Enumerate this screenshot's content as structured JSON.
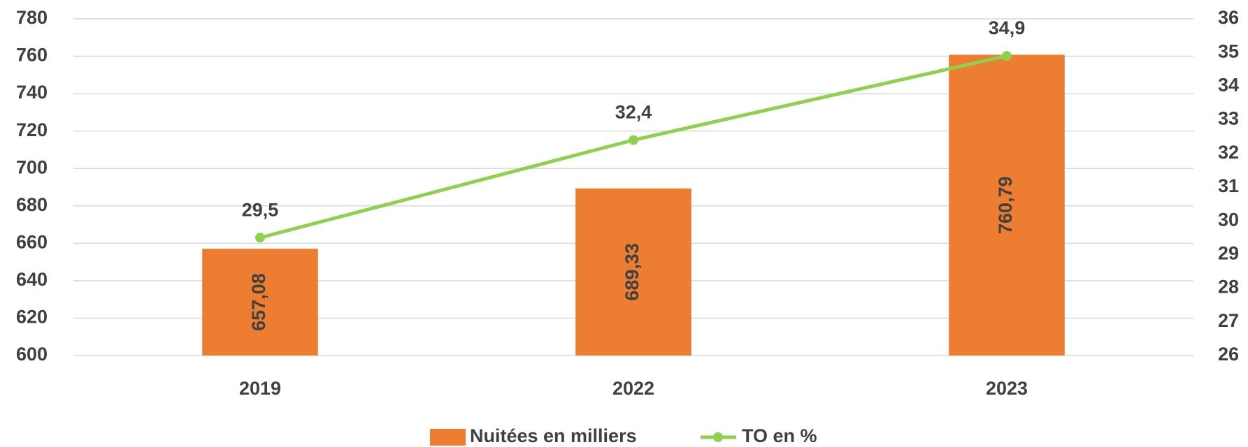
{
  "chart_data": {
    "type": "bar",
    "categories": [
      "2019",
      "2022",
      "2023"
    ],
    "series": [
      {
        "name": "Nuitées en milliers",
        "color": "#ed7d31",
        "values": [
          657.08,
          689.33,
          760.79
        ],
        "value_labels": [
          "657,08",
          "689,33",
          "760,79"
        ]
      },
      {
        "name": "TO en %",
        "type": "line",
        "axis": "y2",
        "color": "#8fd14f",
        "values": [
          29.5,
          32.4,
          34.9
        ],
        "value_labels": [
          "29,5",
          "32,4",
          "34,9"
        ]
      }
    ],
    "ylim": [
      600,
      780
    ],
    "yticks": [
      600,
      620,
      640,
      660,
      680,
      700,
      720,
      740,
      760,
      780
    ],
    "y2lim": [
      26,
      36
    ],
    "y2ticks": [
      26,
      27,
      28,
      29,
      30,
      31,
      32,
      33,
      34,
      35,
      36
    ],
    "grid": true,
    "legend": "bottom"
  }
}
